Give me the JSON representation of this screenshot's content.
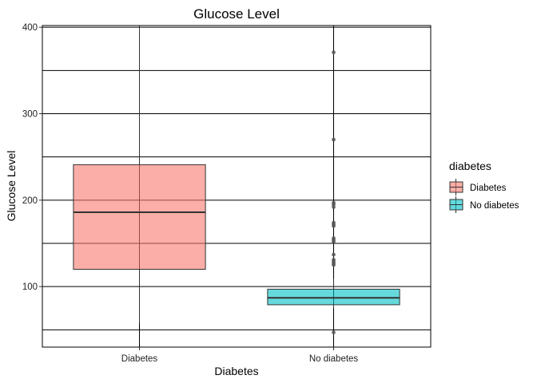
{
  "chart_data": {
    "type": "boxplot",
    "title": "Glucose Level",
    "xlabel": "Diabetes",
    "ylabel": "Glucose Level",
    "ylim": [
      30,
      402
    ],
    "yticks": [
      100,
      200,
      300,
      400
    ],
    "yticks_minor": [
      50,
      150,
      250,
      350
    ],
    "grid": true,
    "categories": [
      "Diabetes",
      "No diabetes"
    ],
    "boxes": [
      {
        "category": "Diabetes",
        "q1": 120,
        "median": 186,
        "q3": 241,
        "whisker_low": 58,
        "whisker_high": 410,
        "outliers": [],
        "color": "#F8766D"
      },
      {
        "category": "No diabetes",
        "q1": 79,
        "median": 87,
        "q3": 97,
        "whisker_low": 75,
        "whisker_high": 109,
        "outliers": [
          47,
          125,
          127,
          129,
          131,
          137,
          152,
          154,
          156,
          170,
          172,
          174,
          192,
          195,
          197,
          270,
          371
        ],
        "color": "#00BFC4"
      }
    ],
    "legend": {
      "title": "diabetes",
      "placement": "right",
      "entries": [
        {
          "label": "Diabetes",
          "color": "#F8766D"
        },
        {
          "label": "No diabetes",
          "color": "#00BFC4"
        }
      ]
    }
  }
}
